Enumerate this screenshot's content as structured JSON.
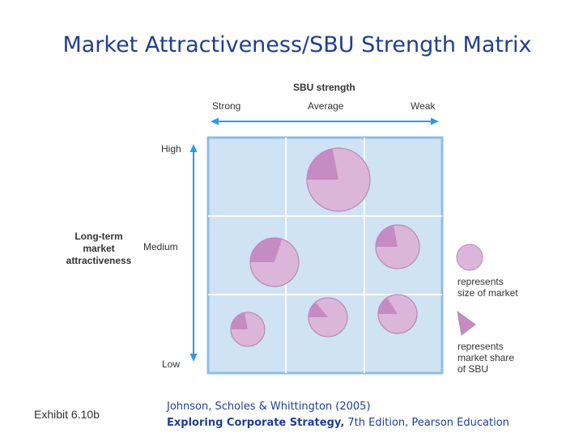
{
  "title": "Market Attractiveness/SBU Strength Matrix",
  "x_axis": {
    "title": "SBU strength",
    "levels": [
      "Strong",
      "Average",
      "Weak"
    ]
  },
  "y_axis": {
    "title_lines": [
      "Long-term",
      "market",
      "attractiveness"
    ],
    "levels": [
      "High",
      "Medium",
      "Low"
    ]
  },
  "colors": {
    "grid_fill": "#cfe3f5",
    "grid_border": "#8fbde5",
    "arrow": "#2d9be0",
    "circle_fill": "#dcb6da",
    "circle_stroke": "#b889b8",
    "share_fill": "#c58bc3"
  },
  "bubbles": [
    {
      "col": "Average",
      "row": "High",
      "market_size": "large",
      "market_share": 0.22
    },
    {
      "col": "Strong",
      "row": "Medium",
      "market_size": "medium",
      "market_share": 0.3
    },
    {
      "col": "Weak",
      "row": "Medium",
      "market_size": "small",
      "market_share": 0.22
    },
    {
      "col": "Strong",
      "row": "Low",
      "market_size": "small",
      "market_share": 0.22
    },
    {
      "col": "Average",
      "row": "Low",
      "market_size": "small",
      "market_share": 0.14
    },
    {
      "col": "Weak",
      "row": "Low",
      "market_size": "small",
      "market_share": 0.16
    }
  ],
  "legend": {
    "size_lines": [
      "represents",
      "size of market"
    ],
    "share_lines": [
      "represents",
      "market share",
      "of SBU"
    ]
  },
  "footer": {
    "exhibit": "Exhibit 6.10b",
    "citation_line1": "Johnson, Scholes & Whittington (2005)",
    "book_title": "Exploring Corporate Strategy,",
    "book_rest": " 7th Edition, Pearson Education"
  }
}
